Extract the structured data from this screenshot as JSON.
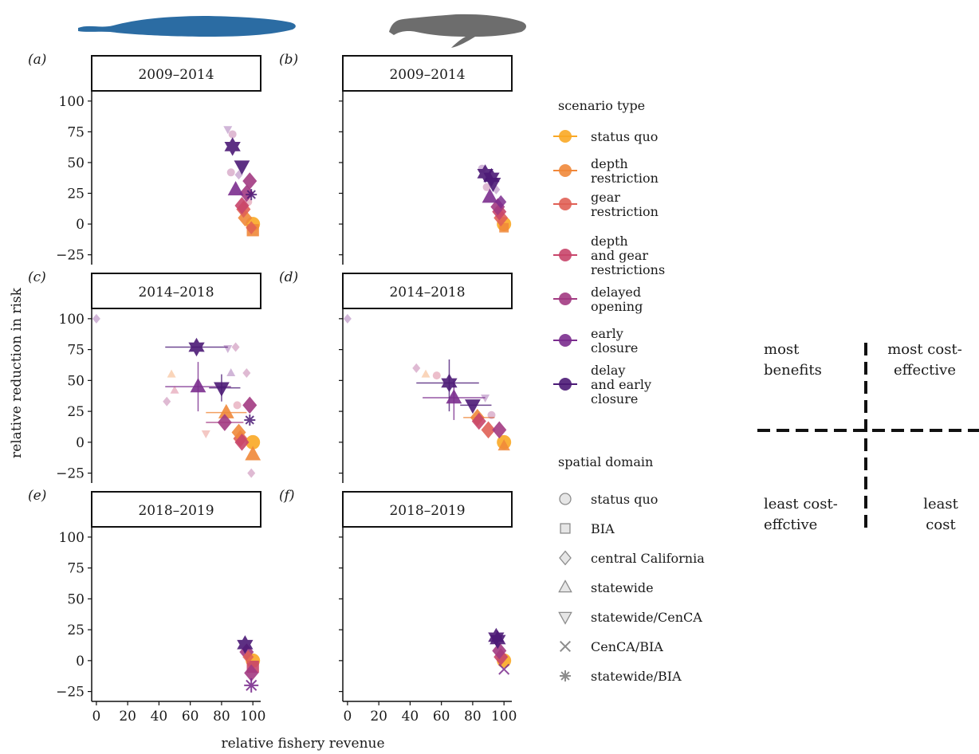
{
  "colors": {
    "status_quo": "#f9a825",
    "depth_restriction": "#f0883a",
    "gear_restriction": "#e06055",
    "depth_and_gear": "#c8456a",
    "delayed_opening": "#a23a82",
    "early_closure": "#7b2d8e",
    "delay_and_early": "#4b1a76",
    "blue_whale": "#2b6ca3",
    "humpback_whale": "#6d6d6d"
  },
  "icons": {
    "left_column": "blue-whale-silhouette",
    "right_column": "humpback-whale-silhouette"
  },
  "chart_data": {
    "type": "scatter",
    "xlabel": "relative fishery revenue",
    "ylabel": "relative reduction in risk",
    "xlim": [
      -3,
      105
    ],
    "ylim": [
      -33,
      107
    ],
    "x_ticks": [
      "0",
      "20",
      "40",
      "60",
      "80",
      "100"
    ],
    "y_ticks": [
      "100",
      "75",
      "50",
      "25",
      "0",
      "−25"
    ],
    "panels": [
      {
        "tag": "(a)",
        "period": "2009–2014",
        "points": [
          {
            "x": 100,
            "y": 0,
            "type": "status_quo",
            "shape": "circle",
            "size": "large"
          },
          {
            "x": 100,
            "y": -5,
            "type": "depth_restriction",
            "shape": "square",
            "size": "large"
          },
          {
            "x": 99,
            "y": -3,
            "type": "gear_restriction",
            "shape": "diamond",
            "size": "medium"
          },
          {
            "x": 95,
            "y": 5,
            "type": "depth_restriction",
            "shape": "diamond",
            "size": "large"
          },
          {
            "x": 94,
            "y": 12,
            "type": "gear_restriction",
            "shape": "diamond",
            "size": "large"
          },
          {
            "x": 93,
            "y": 15,
            "type": "depth_and_gear",
            "shape": "diamond",
            "size": "large"
          },
          {
            "x": 96,
            "y": 25,
            "type": "delayed_opening",
            "shape": "diamond",
            "size": "large"
          },
          {
            "x": 98,
            "y": 35,
            "type": "delayed_opening",
            "shape": "diamond",
            "size": "large"
          },
          {
            "x": 99,
            "y": 24,
            "type": "delay_and_early",
            "shape": "asterisk",
            "size": "medium"
          },
          {
            "x": 89,
            "y": 28,
            "type": "early_closure",
            "shape": "triangle",
            "size": "large"
          },
          {
            "x": 93,
            "y": 47,
            "type": "delay_and_early",
            "shape": "triangle_down",
            "size": "large"
          },
          {
            "x": 87,
            "y": 63,
            "type": "delay_and_early",
            "shape": "star",
            "size": "large"
          },
          {
            "x": 84,
            "y": 77,
            "type": "early_closure",
            "shape": "triangle_down",
            "size": "faint"
          },
          {
            "x": 87,
            "y": 73,
            "type": "delayed_opening",
            "shape": "circle",
            "size": "faint"
          },
          {
            "x": 86,
            "y": 42,
            "type": "delayed_opening",
            "shape": "circle",
            "size": "faint"
          },
          {
            "x": 91,
            "y": 40,
            "type": "early_closure",
            "shape": "diamond",
            "size": "faint"
          },
          {
            "x": 97,
            "y": 18,
            "type": "depth_and_gear",
            "shape": "circle",
            "size": "faint"
          }
        ],
        "errorbars": []
      },
      {
        "tag": "(b)",
        "period": "2009–2014",
        "points": [
          {
            "x": 100,
            "y": 0,
            "type": "status_quo",
            "shape": "circle",
            "size": "large"
          },
          {
            "x": 100,
            "y": -3,
            "type": "depth_restriction",
            "shape": "square",
            "size": "medium"
          },
          {
            "x": 98,
            "y": 5,
            "type": "gear_restriction",
            "shape": "diamond",
            "size": "large"
          },
          {
            "x": 97,
            "y": 10,
            "type": "depth_and_gear",
            "shape": "diamond",
            "size": "large"
          },
          {
            "x": 96,
            "y": 14,
            "type": "delayed_opening",
            "shape": "diamond",
            "size": "large"
          },
          {
            "x": 98,
            "y": 18,
            "type": "early_closure",
            "shape": "diamond",
            "size": "medium"
          },
          {
            "x": 91,
            "y": 22,
            "type": "early_closure",
            "shape": "triangle",
            "size": "large"
          },
          {
            "x": 93,
            "y": 33,
            "type": "delay_and_early",
            "shape": "triangle_down",
            "size": "large"
          },
          {
            "x": 88,
            "y": 41,
            "type": "delay_and_early",
            "shape": "star",
            "size": "large"
          },
          {
            "x": 92,
            "y": 38,
            "type": "delay_and_early",
            "shape": "star",
            "size": "large"
          },
          {
            "x": 86,
            "y": 45,
            "type": "early_closure",
            "shape": "circle",
            "size": "faint"
          },
          {
            "x": 89,
            "y": 30,
            "type": "delayed_opening",
            "shape": "circle",
            "size": "faint"
          },
          {
            "x": 95,
            "y": 28,
            "type": "early_closure",
            "shape": "diamond",
            "size": "faint"
          }
        ],
        "errorbars": []
      },
      {
        "tag": "(c)",
        "period": "2014–2018",
        "points": [
          {
            "x": 0,
            "y": 100,
            "type": "early_closure",
            "shape": "diamond",
            "size": "faint"
          },
          {
            "x": 100,
            "y": 0,
            "type": "status_quo",
            "shape": "circle",
            "size": "large"
          },
          {
            "x": 100,
            "y": -10,
            "type": "depth_restriction",
            "shape": "triangle",
            "size": "large"
          },
          {
            "x": 92,
            "y": 3,
            "type": "gear_restriction",
            "shape": "diamond",
            "size": "large"
          },
          {
            "x": 91,
            "y": 8,
            "type": "depth_restriction",
            "shape": "diamond",
            "size": "large"
          },
          {
            "x": 93,
            "y": 0,
            "type": "depth_and_gear",
            "shape": "diamond",
            "size": "large"
          },
          {
            "x": 83,
            "y": 24,
            "type": "depth_restriction",
            "shape": "triangle",
            "size": "large"
          },
          {
            "x": 82,
            "y": 16,
            "type": "delayed_opening",
            "shape": "diamond",
            "size": "large"
          },
          {
            "x": 98,
            "y": 30,
            "type": "delayed_opening",
            "shape": "diamond",
            "size": "large"
          },
          {
            "x": 98,
            "y": 18,
            "type": "delay_and_early",
            "shape": "asterisk",
            "size": "medium"
          },
          {
            "x": 65,
            "y": 45,
            "type": "early_closure",
            "shape": "triangle",
            "size": "large"
          },
          {
            "x": 80,
            "y": 44,
            "type": "delay_and_early",
            "shape": "triangle_down",
            "size": "large"
          },
          {
            "x": 64,
            "y": 77,
            "type": "delay_and_early",
            "shape": "star",
            "size": "large"
          },
          {
            "x": 84,
            "y": 76,
            "type": "early_closure",
            "shape": "triangle_down",
            "size": "faint"
          },
          {
            "x": 89,
            "y": 77,
            "type": "delayed_opening",
            "shape": "diamond",
            "size": "faint"
          },
          {
            "x": 45,
            "y": 33,
            "type": "delayed_opening",
            "shape": "diamond",
            "size": "faint"
          },
          {
            "x": 48,
            "y": 55,
            "type": "depth_restriction",
            "shape": "triangle",
            "size": "faint"
          },
          {
            "x": 50,
            "y": 42,
            "type": "depth_and_gear",
            "shape": "triangle",
            "size": "faint"
          },
          {
            "x": 96,
            "y": 56,
            "type": "delayed_opening",
            "shape": "diamond",
            "size": "faint"
          },
          {
            "x": 86,
            "y": 56,
            "type": "early_closure",
            "shape": "triangle",
            "size": "faint"
          },
          {
            "x": 70,
            "y": 7,
            "type": "gear_restriction",
            "shape": "triangle_down",
            "size": "faint"
          },
          {
            "x": 99,
            "y": -25,
            "type": "delayed_opening",
            "shape": "diamond",
            "size": "faint"
          },
          {
            "x": 90,
            "y": 30,
            "type": "depth_and_gear",
            "shape": "circle",
            "size": "faint"
          }
        ],
        "errorbars": [
          {
            "x_min": 44,
            "x_max": 84,
            "y": 77,
            "type": "delay_and_early"
          },
          {
            "x_min": 44,
            "x_max": 86,
            "y": 45,
            "type": "early_closure"
          },
          {
            "x_min": 72,
            "x_max": 92,
            "y": 44,
            "type": "delay_and_early"
          },
          {
            "x_min": 70,
            "x_max": 96,
            "y": 24,
            "type": "depth_restriction"
          },
          {
            "x_min": 70,
            "x_max": 94,
            "y": 16,
            "type": "delayed_opening"
          },
          {
            "x": 65,
            "y_min": 25,
            "y_max": 65,
            "type": "early_closure"
          },
          {
            "x": 80,
            "y_min": 33,
            "y_max": 55,
            "type": "delay_and_early"
          }
        ]
      },
      {
        "tag": "(d)",
        "period": "2014–2018",
        "points": [
          {
            "x": 0,
            "y": 100,
            "type": "early_closure",
            "shape": "diamond",
            "size": "faint"
          },
          {
            "x": 100,
            "y": 0,
            "type": "status_quo",
            "shape": "circle",
            "size": "large"
          },
          {
            "x": 100,
            "y": -3,
            "type": "depth_restriction",
            "shape": "triangle",
            "size": "medium"
          },
          {
            "x": 90,
            "y": 10,
            "type": "gear_restriction",
            "shape": "diamond",
            "size": "large"
          },
          {
            "x": 83,
            "y": 20,
            "type": "depth_restriction",
            "shape": "diamond",
            "size": "large"
          },
          {
            "x": 84,
            "y": 17,
            "type": "depth_and_gear",
            "shape": "diamond",
            "size": "large"
          },
          {
            "x": 97,
            "y": 10,
            "type": "delayed_opening",
            "shape": "diamond",
            "size": "large"
          },
          {
            "x": 68,
            "y": 36,
            "type": "early_closure",
            "shape": "triangle",
            "size": "large"
          },
          {
            "x": 80,
            "y": 30,
            "type": "delay_and_early",
            "shape": "triangle_down",
            "size": "large"
          },
          {
            "x": 65,
            "y": 48,
            "type": "delay_and_early",
            "shape": "star",
            "size": "large"
          },
          {
            "x": 44,
            "y": 60,
            "type": "delayed_opening",
            "shape": "diamond",
            "size": "faint"
          },
          {
            "x": 50,
            "y": 55,
            "type": "depth_restriction",
            "shape": "triangle",
            "size": "faint"
          },
          {
            "x": 57,
            "y": 54,
            "type": "depth_and_gear",
            "shape": "circle",
            "size": "faint"
          },
          {
            "x": 88,
            "y": 36,
            "type": "early_closure",
            "shape": "triangle_down",
            "size": "faint"
          },
          {
            "x": 92,
            "y": 22,
            "type": "delayed_opening",
            "shape": "circle",
            "size": "faint"
          }
        ],
        "errorbars": [
          {
            "x_min": 44,
            "x_max": 84,
            "y": 48,
            "type": "delay_and_early"
          },
          {
            "x_min": 48,
            "x_max": 88,
            "y": 36,
            "type": "early_closure"
          },
          {
            "x_min": 72,
            "x_max": 92,
            "y": 30,
            "type": "delay_and_early"
          },
          {
            "x_min": 74,
            "x_max": 94,
            "y": 20,
            "type": "depth_restriction"
          },
          {
            "x": 65,
            "y_min": 25,
            "y_max": 67,
            "type": "delay_and_early"
          },
          {
            "x": 68,
            "y_min": 18,
            "y_max": 50,
            "type": "early_closure"
          }
        ]
      },
      {
        "tag": "(e)",
        "period": "2018–2019",
        "points": [
          {
            "x": 100,
            "y": 0,
            "type": "status_quo",
            "shape": "circle",
            "size": "large"
          },
          {
            "x": 100,
            "y": -5,
            "type": "depth_and_gear",
            "shape": "square",
            "size": "large"
          },
          {
            "x": 99,
            "y": -10,
            "type": "delayed_opening",
            "shape": "diamond",
            "size": "large"
          },
          {
            "x": 99,
            "y": -20,
            "type": "early_closure",
            "shape": "asterisk",
            "size": "large"
          },
          {
            "x": 96,
            "y": 7,
            "type": "delayed_opening",
            "shape": "diamond",
            "size": "large"
          },
          {
            "x": 97,
            "y": 3,
            "type": "gear_restriction",
            "shape": "diamond",
            "size": "medium"
          },
          {
            "x": 95,
            "y": 13,
            "type": "delay_and_early",
            "shape": "star",
            "size": "large"
          }
        ],
        "errorbars": []
      },
      {
        "tag": "(f)",
        "period": "2018–2019",
        "points": [
          {
            "x": 100,
            "y": 0,
            "type": "status_quo",
            "shape": "circle",
            "size": "large"
          },
          {
            "x": 100,
            "y": -7,
            "type": "early_closure",
            "shape": "cross",
            "size": "medium"
          },
          {
            "x": 98,
            "y": 3,
            "type": "depth_and_gear",
            "shape": "diamond",
            "size": "large"
          },
          {
            "x": 97,
            "y": 8,
            "type": "delayed_opening",
            "shape": "diamond",
            "size": "large"
          },
          {
            "x": 96,
            "y": 17,
            "type": "delay_and_early",
            "shape": "star",
            "size": "large"
          },
          {
            "x": 95,
            "y": 19,
            "type": "delay_and_early",
            "shape": "star",
            "size": "large"
          }
        ],
        "errorbars": []
      }
    ],
    "legend_scenario": {
      "title": "scenario type",
      "items": [
        {
          "key": "status_quo",
          "lines": [
            "status quo"
          ]
        },
        {
          "key": "depth_restriction",
          "lines": [
            "depth",
            "restriction"
          ]
        },
        {
          "key": "gear_restriction",
          "lines": [
            "gear",
            "restriction"
          ]
        },
        {
          "key": "depth_and_gear",
          "lines": [
            "depth",
            "and gear",
            "restrictions"
          ]
        },
        {
          "key": "delayed_opening",
          "lines": [
            "delayed",
            "opening"
          ]
        },
        {
          "key": "early_closure",
          "lines": [
            "early",
            "closure"
          ]
        },
        {
          "key": "delay_and_early",
          "lines": [
            "delay",
            "and early",
            "closure"
          ]
        }
      ]
    },
    "legend_spatial": {
      "title": "spatial domain",
      "items": [
        {
          "shape": "circle",
          "label": "status quo"
        },
        {
          "shape": "square",
          "label": "BIA"
        },
        {
          "shape": "diamond",
          "label": "central California"
        },
        {
          "shape": "triangle",
          "label": "statewide"
        },
        {
          "shape": "triangle_down",
          "label": "statewide/CenCA"
        },
        {
          "shape": "cross",
          "label": "CenCA/BIA"
        },
        {
          "shape": "asterisk",
          "label": "statewide/BIA"
        }
      ]
    },
    "quadrant_labels": {
      "top_left": [
        "most",
        "benefits"
      ],
      "top_right": [
        "most cost-",
        "effective"
      ],
      "bottom_left": [
        "least cost-",
        "effctive"
      ],
      "bottom_right": [
        "least",
        "cost"
      ]
    }
  }
}
